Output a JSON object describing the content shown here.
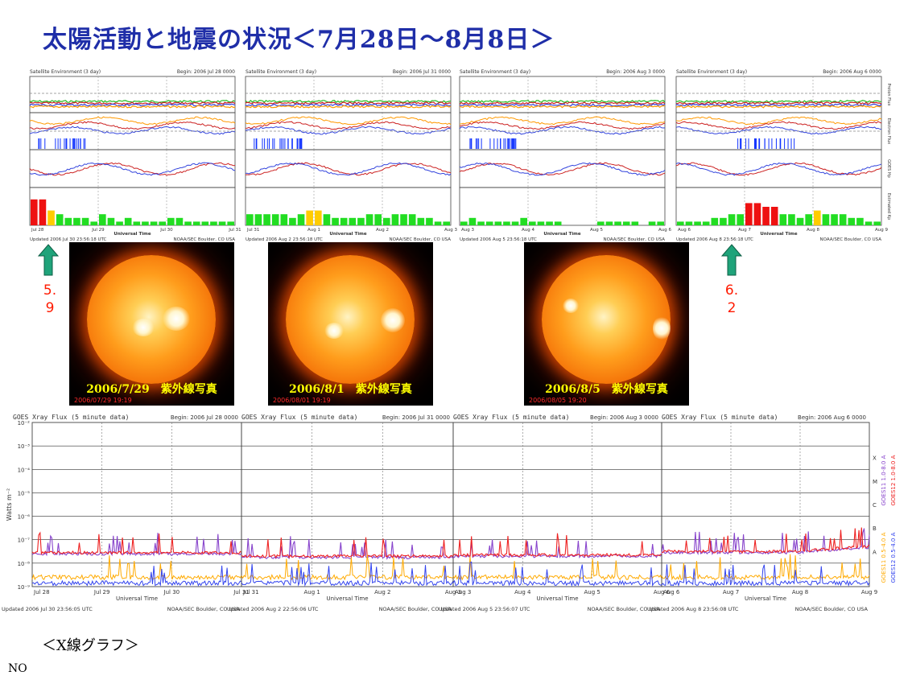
{
  "title": "太陽活動と地震の状況＜7月28日～8月8日＞",
  "colors": {
    "title": "#1f2ea8",
    "arrow": "#1fa37a",
    "magnitude": "#ff1a00",
    "caption": "#ffff00"
  },
  "magnitudes": [
    {
      "id": "m1",
      "lines": [
        "5.",
        "9"
      ]
    },
    {
      "id": "m2",
      "lines": [
        "6.",
        "2"
      ]
    }
  ],
  "sun_images": [
    {
      "id": "s1",
      "caption": "2006/7/29　紫外線写真",
      "stamp": "2006/07/29 19:19"
    },
    {
      "id": "s2",
      "caption": "2006/8/1　紫外線写真",
      "stamp": "2006/08/01 19:19"
    },
    {
      "id": "s3",
      "caption": "2006/8/5　紫外線写真",
      "stamp": "2006/08/05 19:20"
    }
  ],
  "xray_label": "＜X線グラフ＞",
  "footnote": "NO",
  "chart_data": [
    {
      "type": "bar",
      "title": "Satellite Environment (3 day)",
      "panels": [
        {
          "begin": "Begin:  2006 Jul 28 0000",
          "days": [
            "Jul 28",
            "Jul 29",
            "Jul 30",
            "Jul 31"
          ],
          "updated": "Updated 2006 Jul 30 23:56:18 UTC",
          "credit": "NOAA/SEC Boulder, CO USA",
          "kp": [
            7,
            7,
            4,
            3,
            2,
            2,
            2,
            1,
            3,
            2,
            1,
            2,
            1,
            1,
            1,
            1,
            2,
            2,
            1,
            1,
            1,
            1,
            1,
            1
          ]
        },
        {
          "begin": "Begin:  2006 Jul 31 0000",
          "days": [
            "Jul 31",
            "Aug 1",
            "Aug 2",
            "Aug 3"
          ],
          "updated": "Updated 2006 Aug  2 23:56:18 UTC",
          "credit": "NOAA/SEC Boulder, CO USA",
          "kp": [
            3,
            3,
            3,
            3,
            3,
            2,
            3,
            4,
            4,
            3,
            2,
            2,
            2,
            2,
            3,
            3,
            2,
            3,
            3,
            3,
            2,
            2,
            1,
            1
          ]
        },
        {
          "begin": "Begin:  2006 Aug  3 0000",
          "days": [
            "Aug 3",
            "Aug 4",
            "Aug 5",
            "Aug 6"
          ],
          "updated": "Updated 2006 Aug  5 23:56:18 UTC",
          "credit": "NOAA/SEC Boulder, CO USA",
          "kp": [
            1,
            2,
            1,
            1,
            1,
            1,
            1,
            2,
            1,
            1,
            1,
            1,
            0,
            0,
            0,
            0,
            1,
            1,
            1,
            1,
            1,
            0,
            1,
            1
          ]
        },
        {
          "begin": "Begin:  2006 Aug  6 0000",
          "days": [
            "Aug 6",
            "Aug 7",
            "Aug 8",
            "Aug 9"
          ],
          "updated": "Updated 2006 Aug  8 23:56:18 UTC",
          "credit": "NOAA/SEC Boulder, CO USA",
          "kp": [
            1,
            1,
            1,
            1,
            2,
            2,
            3,
            3,
            6,
            6,
            5,
            5,
            3,
            3,
            2,
            3,
            4,
            3,
            3,
            3,
            2,
            2,
            1,
            1
          ]
        }
      ],
      "kp_colors": {
        "quiet": "#22dd22",
        "active": "#ffcc00",
        "storm": "#ee1111"
      },
      "axis_labels": [
        "Proton Flux",
        "Electron Flux",
        "GOES Hp",
        "Estimated Kp"
      ],
      "xlabel": "Universal Time"
    },
    {
      "type": "line",
      "title": "GOES Xray Flux (5 minute data)",
      "ylabel": "Watts m⁻²",
      "yscale": "log",
      "ylim": [
        1e-09,
        0.01
      ],
      "ytick_labels": [
        "10⁻⁹",
        "10⁻⁸",
        "10⁻⁷",
        "10⁻⁶",
        "10⁻⁵",
        "10⁻⁴",
        "10⁻³",
        "10⁻²"
      ],
      "flare_classes": [
        "X",
        "M",
        "C",
        "B",
        "A"
      ],
      "legend": [
        "GOES11 1.0-8.0 A",
        "GOES12 1.0-8.0 A",
        "GOES11 0.5-4.0 A",
        "GOES12 0.5-4.0 A"
      ],
      "legend_colors": [
        "#8844cc",
        "#ee2222",
        "#ffaa00",
        "#3344ee"
      ],
      "xlabel": "Universal Time",
      "panels": [
        {
          "begin": "Begin:  2006 Jul 28 0000",
          "days": [
            "Jul 28",
            "Jul 29",
            "Jul 30",
            "Jul 31"
          ],
          "updated": "Updated 2006 Jul 30 23:56:05 UTC",
          "credit": "NOAA/SEC Boulder, CO USA"
        },
        {
          "begin": "Begin:  2006 Jul 31 0000",
          "days": [
            "Jul 31",
            "Aug 1",
            "Aug 2",
            "Aug 3"
          ],
          "updated": "Updated 2006 Aug  2 22:56:06 UTC",
          "credit": "NOAA/SEC Boulder, CO USA"
        },
        {
          "begin": "Begin:  2006 Aug  3 0000",
          "days": [
            "Aug 3",
            "Aug 4",
            "Aug 5",
            "Aug 6"
          ],
          "updated": "Updated 2006 Aug  5 23:56:07 UTC",
          "credit": "NOAA/SEC Boulder, CO USA"
        },
        {
          "begin": "Begin:  2006 Aug  6 0000",
          "days": [
            "Aug 6",
            "Aug 7",
            "Aug 8",
            "Aug 9"
          ],
          "updated": "Updated 2006 Aug  8 23:56:08 UTC",
          "credit": "NOAA/SEC Boulder, CO USA"
        }
      ]
    }
  ]
}
